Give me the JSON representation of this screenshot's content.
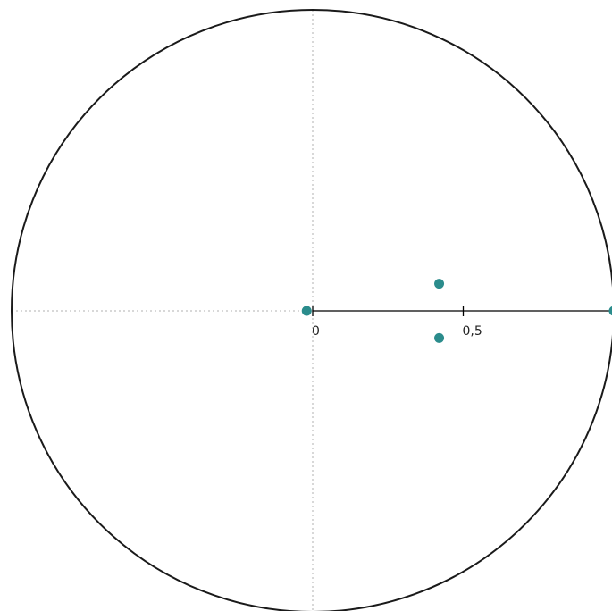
{
  "chart_data": {
    "type": "scatter",
    "title": "",
    "xlabel": "",
    "ylabel": "",
    "xlim": [
      -1,
      1
    ],
    "ylim": [
      -1,
      1
    ],
    "unit_circle": true,
    "grid": false,
    "axes": {
      "x_tick_labels": [
        {
          "value": 0,
          "label": "0"
        },
        {
          "value": 0.5,
          "label": "0,5"
        }
      ]
    },
    "series": [
      {
        "color": "#2b8c8c",
        "points": [
          {
            "x": -0.02,
            "y": 0.0
          },
          {
            "x": 0.42,
            "y": 0.09
          },
          {
            "x": 0.42,
            "y": -0.09
          },
          {
            "x": 1.0,
            "y": 0.0
          }
        ]
      }
    ],
    "colors": {
      "circle": "#1a1a1a",
      "axis": "#000000",
      "dotted_axis": "#b0b0b0",
      "point": "#2b8c8c"
    }
  }
}
